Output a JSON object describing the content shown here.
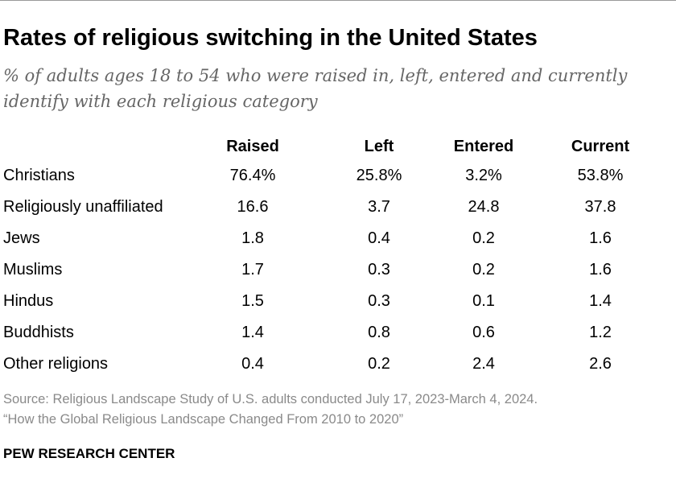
{
  "header": {
    "title": "Rates of religious switching in the United States",
    "subtitle": "% of adults ages 18 to 54 who were raised in, left, entered and currently identify with each religious category"
  },
  "chart_data": {
    "type": "table",
    "title": "Rates of religious switching in the United States",
    "subtitle": "% of adults ages 18 to 54 who were raised in, left, entered and currently identify with each religious category",
    "columns": [
      "Raised",
      "Left",
      "Entered",
      "Current"
    ],
    "rows": [
      {
        "label": "Christians",
        "cells": [
          "76.4%",
          "25.8%",
          "3.2%",
          "53.8%"
        ]
      },
      {
        "label": "Religiously unaffiliated",
        "cells": [
          "16.6",
          "3.7",
          "24.8",
          "37.8"
        ]
      },
      {
        "label": "Jews",
        "cells": [
          "1.8",
          "0.4",
          "0.2",
          "1.6"
        ]
      },
      {
        "label": "Muslims",
        "cells": [
          "1.7",
          "0.3",
          "0.2",
          "1.6"
        ]
      },
      {
        "label": "Hindus",
        "cells": [
          "1.5",
          "0.3",
          "0.1",
          "1.4"
        ]
      },
      {
        "label": "Buddhists",
        "cells": [
          "1.4",
          "0.8",
          "0.6",
          "1.2"
        ]
      },
      {
        "label": "Other religions",
        "cells": [
          "0.4",
          "0.2",
          "2.4",
          "2.6"
        ]
      }
    ]
  },
  "footer": {
    "source_line1": "Source: Religious Landscape Study of U.S. adults conducted July 17, 2023-March 4, 2024.",
    "source_line2": "“How the Global Religious Landscape Changed From 2010 to 2020”",
    "brand": "PEW RESEARCH CENTER"
  },
  "colors": {
    "text": "#000000",
    "subtitle": "#666666",
    "source": "#8a8a8a",
    "rule": "#9a9a9a"
  }
}
